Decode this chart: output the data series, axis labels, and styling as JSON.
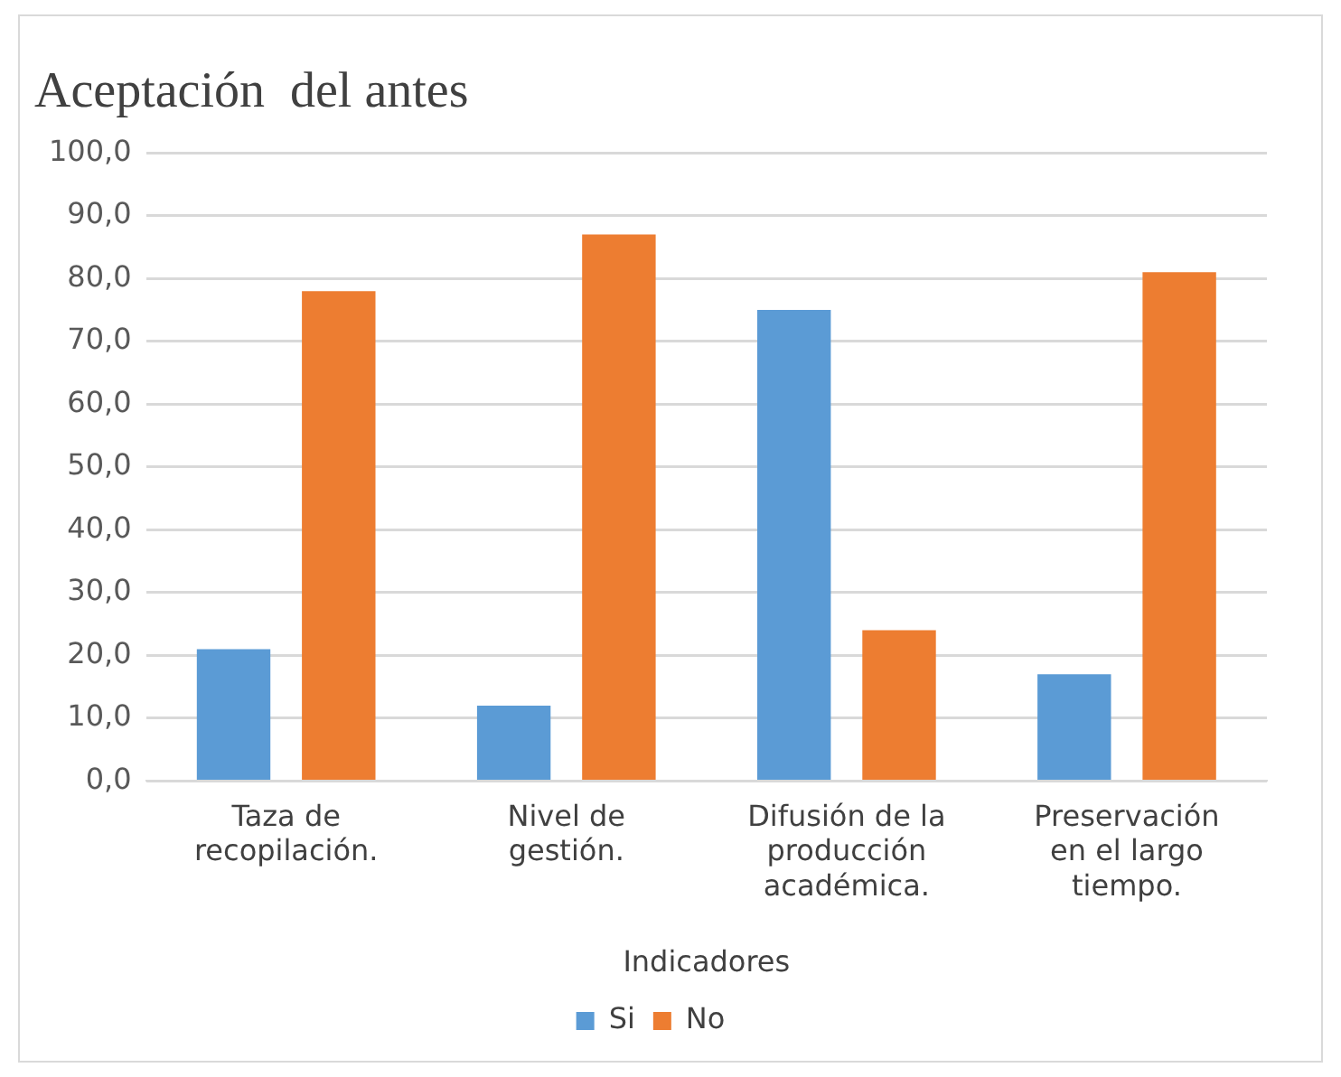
{
  "chart_data": {
    "type": "bar",
    "title": "Aceptación  del antes",
    "xlabel": "Indicadores",
    "categories": [
      "Taza de recopilación.",
      "Nivel de gestión.",
      "Difusión de la producción académica.",
      "Preservación en el largo tiempo."
    ],
    "series": [
      {
        "name": "Si",
        "color": "#5b9bd5",
        "values": [
          21,
          12,
          75,
          17
        ]
      },
      {
        "name": "No",
        "color": "#ed7d31",
        "values": [
          78,
          87,
          24,
          81
        ]
      }
    ],
    "ylim": [
      0,
      100
    ],
    "yticks": [
      {
        "value": 0,
        "label": "0,0"
      },
      {
        "value": 10,
        "label": "10,0"
      },
      {
        "value": 20,
        "label": "20,0"
      },
      {
        "value": 30,
        "label": "30,0"
      },
      {
        "value": 40,
        "label": "40,0"
      },
      {
        "value": 50,
        "label": "50,0"
      },
      {
        "value": 60,
        "label": "60,0"
      },
      {
        "value": 70,
        "label": "70,0"
      },
      {
        "value": 80,
        "label": "80,0"
      },
      {
        "value": 90,
        "label": "90,0"
      },
      {
        "value": 100,
        "label": "100,0"
      }
    ],
    "grid": "y",
    "legend": "bottom"
  }
}
